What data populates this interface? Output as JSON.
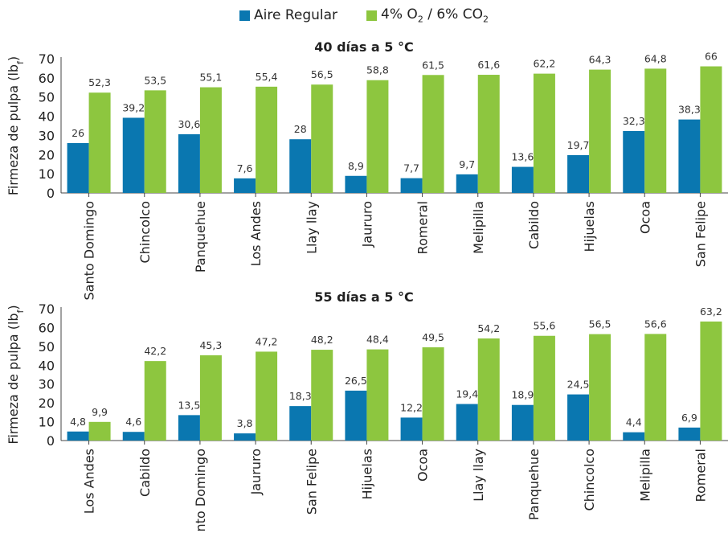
{
  "legend": {
    "series0": "Aire Regular",
    "series1_main": "4% O",
    "series1_sub1": "2",
    "series1_mid": " / 6% CO",
    "series1_sub2": "2"
  },
  "colors": {
    "aire": "#0a77b0",
    "ca": "#8dc63f"
  },
  "chart_data": [
    {
      "type": "bar",
      "title": "40 días a 5 °C",
      "ylabel": "Firmeza de pulpa (lb",
      "ylabel_sub": "f",
      "ylabel_close": ")",
      "ylim": [
        0,
        70
      ],
      "yticks": [
        0,
        10,
        20,
        30,
        40,
        50,
        60,
        70
      ],
      "categories": [
        "Santo Domingo",
        "Chincolco",
        "Panquehue",
        "Los Andes",
        "Llay llay",
        "Jaururo",
        "Romeral",
        "Melipilla",
        "Cabildo",
        "Hijuelas",
        "Ocoa",
        "San Felipe"
      ],
      "series": [
        {
          "name": "Aire Regular",
          "values": [
            26,
            39.2,
            30.6,
            7.6,
            28,
            8.9,
            7.7,
            9.7,
            13.6,
            19.7,
            32.3,
            38.3
          ],
          "labels": [
            "26",
            "39,2",
            "30,6",
            "7,6",
            "28",
            "8,9",
            "7,7",
            "9,7",
            "13,6",
            "19,7",
            "32,3",
            "38,3"
          ]
        },
        {
          "name": "4% O2 / 6% CO2",
          "values": [
            52.3,
            53.5,
            55.1,
            55.4,
            56.5,
            58.8,
            61.5,
            61.6,
            62.2,
            64.3,
            64.8,
            66
          ],
          "labels": [
            "52,3",
            "53,5",
            "55,1",
            "55,4",
            "56,5",
            "58,8",
            "61,5",
            "61,6",
            "62,2",
            "64,3",
            "64,8",
            "66"
          ]
        }
      ]
    },
    {
      "type": "bar",
      "title": "55 días a 5 °C",
      "ylabel": "Firmeza de pulpa (lb",
      "ylabel_sub": "f",
      "ylabel_close": ")",
      "ylim": [
        0,
        70
      ],
      "yticks": [
        0,
        10,
        20,
        30,
        40,
        50,
        60,
        70
      ],
      "categories": [
        "Los Andes",
        "Cabildo",
        "Santo Domingo",
        "Jaururo",
        "San Felipe",
        "Hijuelas",
        "Ocoa",
        "Llay llay",
        "Panquehue",
        "Chincolco",
        "Melipilla",
        "Romeral"
      ],
      "series": [
        {
          "name": "Aire Regular",
          "values": [
            4.8,
            4.6,
            13.5,
            3.8,
            18.3,
            26.5,
            12.2,
            19.4,
            18.9,
            24.5,
            4.4,
            6.9
          ],
          "labels": [
            "4,8",
            "4,6",
            "13,5",
            "3,8",
            "18,3",
            "26,5",
            "12,2",
            "19,4",
            "18,9",
            "24,5",
            "4,4",
            "6,9"
          ]
        },
        {
          "name": "4% O2 / 6% CO2",
          "values": [
            9.9,
            42.2,
            45.3,
            47.2,
            48.2,
            48.4,
            49.5,
            54.2,
            55.6,
            56.5,
            56.6,
            63.2
          ],
          "labels": [
            "9,9",
            "42,2",
            "45,3",
            "47,2",
            "48,2",
            "48,4",
            "49,5",
            "54,2",
            "55,6",
            "56,5",
            "56,6",
            "63,2"
          ]
        }
      ]
    }
  ]
}
